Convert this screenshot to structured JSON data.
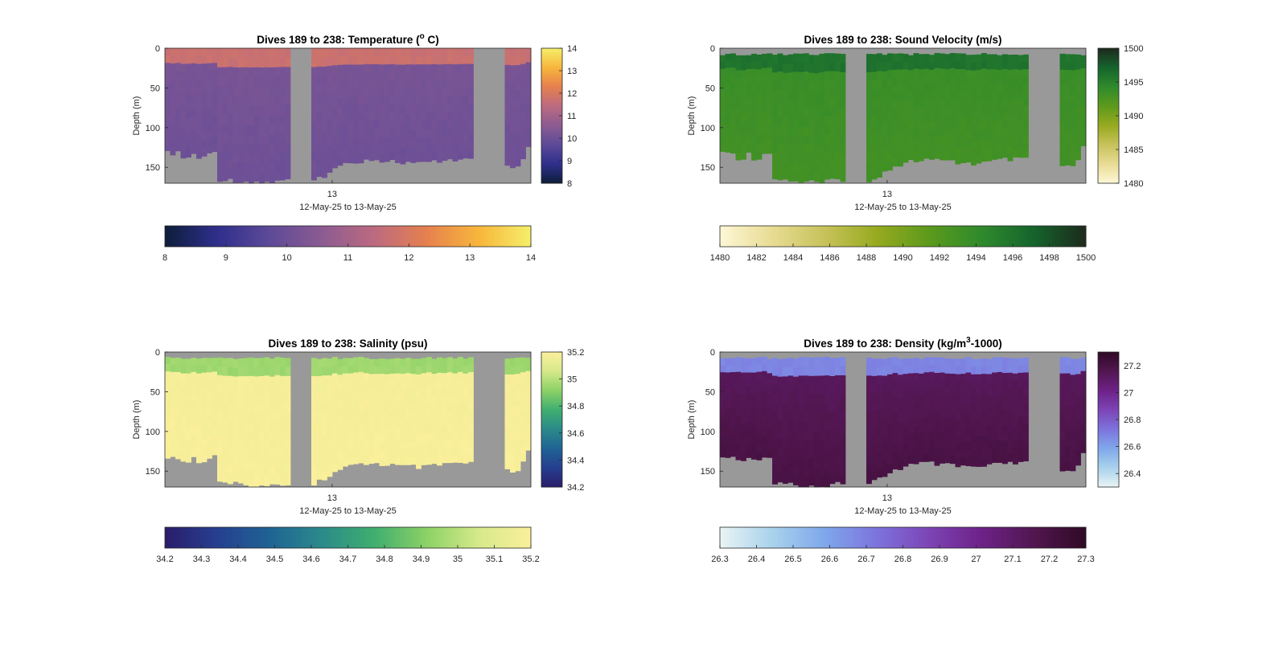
{
  "chart_data": [
    {
      "type": "heatmap",
      "title": "Dives 189 to 238: Temperature (",
      "title_sup": "o",
      "title_tail": " C)",
      "ylabel": "Depth (m)",
      "xlabel": "12-May-25 to 13-May-25",
      "x_ticks": [
        "13"
      ],
      "y_ticks": [
        0,
        50,
        100,
        150
      ],
      "ylim": [
        0,
        170
      ],
      "colormap": [
        "#0d1e3a",
        "#2f2f8c",
        "#5d4a98",
        "#8c5b92",
        "#bc6a80",
        "#e6804f",
        "#f7b63c",
        "#f5ef6a"
      ],
      "clim": [
        8,
        14
      ],
      "colorbar_ticks": [
        "14",
        "13",
        "12",
        "11",
        "10",
        "9",
        "8"
      ],
      "horizontal_colorbar_ticks": [
        "8",
        "9",
        "10",
        "11",
        "12",
        "13",
        "14"
      ],
      "surface_value": 11.7,
      "body_value": 10.2,
      "deep_value": 10.0
    },
    {
      "type": "heatmap",
      "title": "Dives 189 to 238: Sound Velocity (m/s)",
      "ylabel": "Depth (m)",
      "xlabel": "12-May-25 to 13-May-25",
      "x_ticks": [
        "13"
      ],
      "y_ticks": [
        0,
        50,
        100,
        150
      ],
      "ylim": [
        0,
        170
      ],
      "colormap": [
        "#fdf7d6",
        "#e8dc94",
        "#c7c25a",
        "#97aa1f",
        "#5c9a1c",
        "#2f8a2c",
        "#15642d",
        "#1d2a1c"
      ],
      "clim": [
        1480,
        1500
      ],
      "colorbar_ticks": [
        "1500",
        "1495",
        "1490",
        "1485",
        "1480"
      ],
      "horizontal_colorbar_ticks": [
        "1480",
        "1482",
        "1484",
        "1486",
        "1488",
        "1490",
        "1492",
        "1494",
        "1496",
        "1498",
        "1500"
      ],
      "surface_value": 1496.0,
      "body_value": 1493.6,
      "deep_value": 1493.0
    },
    {
      "type": "heatmap",
      "title": "Dives 189 to 238: Salinity (psu)",
      "ylabel": "Depth (m)",
      "xlabel": "12-May-25 to 13-May-25",
      "x_ticks": [
        "13"
      ],
      "y_ticks": [
        0,
        50,
        100,
        150
      ],
      "ylim": [
        0,
        170
      ],
      "colormap": [
        "#2a1d6b",
        "#263f8f",
        "#1f6394",
        "#2b8a8a",
        "#3fae6f",
        "#8cd166",
        "#d6e98a",
        "#fbef9b"
      ],
      "clim": [
        34.2,
        35.2
      ],
      "colorbar_ticks": [
        "35.2",
        "35",
        "34.8",
        "34.6",
        "34.4",
        "34.2"
      ],
      "horizontal_colorbar_ticks": [
        "34.2",
        "34.3",
        "34.4",
        "34.5",
        "34.6",
        "34.7",
        "34.8",
        "34.9",
        "35",
        "35.1",
        "35.2"
      ],
      "surface_value": 34.95,
      "body_value": 35.18,
      "deep_value": 35.19
    },
    {
      "type": "heatmap",
      "title": "Dives 189 to 238: Density (kg/m",
      "title_sup": "3",
      "title_tail": "-1000)",
      "ylabel": "Depth (m)",
      "xlabel": "12-May-25 to 13-May-25",
      "x_ticks": [
        "13"
      ],
      "y_ticks": [
        0,
        50,
        100,
        150
      ],
      "ylim": [
        0,
        170
      ],
      "colormap": [
        "#e9f4f4",
        "#a9d2ec",
        "#7fa8eb",
        "#7d73dd",
        "#7d44b5",
        "#6d2288",
        "#521650",
        "#2f0a25"
      ],
      "clim": [
        26.3,
        27.3
      ],
      "colorbar_ticks": [
        "27.2",
        "27",
        "26.8",
        "26.6",
        "26.4"
      ],
      "horizontal_colorbar_ticks": [
        "26.3",
        "26.4",
        "26.5",
        "26.6",
        "26.7",
        "26.8",
        "26.9",
        "27",
        "27.1",
        "27.2",
        "27.3"
      ],
      "surface_value": 26.68,
      "body_value": 27.13,
      "deep_value": 27.2
    }
  ]
}
